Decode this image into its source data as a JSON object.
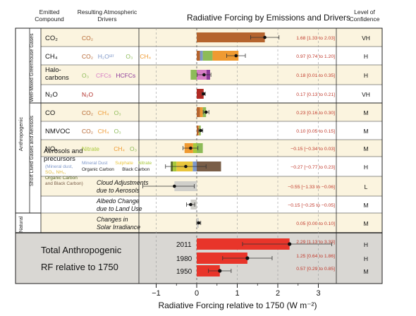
{
  "header": {
    "emitted": [
      "Emitted",
      "Compound"
    ],
    "drivers": [
      "Resulting Atmospheric",
      "Drivers"
    ],
    "title": "Radiative Forcing by Emissions and Drivers",
    "confidence": [
      "Level of",
      "Confidence"
    ]
  },
  "groups": {
    "anthropogenic": "Anthropogenic",
    "wmghg": "Well-Mixed Greenhouse Gases",
    "slgas": "Short Lived Gases and Aerosols",
    "natural": "Natural"
  },
  "colors": {
    "CO2": "#b5642e",
    "CH4": "#ef9a32",
    "O3": "#8dbb58",
    "H2O": "#7e97c8",
    "CFCs": "#d77ec5",
    "HCFCs": "#8e3b9b",
    "N2O": "#b02a24",
    "nitrate": "#a8c83a",
    "mineral": "#7e97c8",
    "sulphate": "#e9c53c",
    "organic": "#5a6a2c",
    "black": "#7a5e48",
    "gray": "#d0cfca",
    "total": "#e8352a",
    "rowshade": "#fbf4df",
    "totalbg": "#d9d7d3"
  },
  "rows": [
    {
      "compound": "CO₂",
      "value": "1.68 [1.33 to 2.03]",
      "conf": "VH",
      "drivers": [
        {
          "t": "CO₂",
          "c": "CO2"
        }
      ]
    },
    {
      "compound": "CH₄",
      "value": "0.97 [0.74 to 1.20]",
      "conf": "H",
      "drivers": [
        {
          "t": "CO₂",
          "c": "CO2"
        },
        {
          "t": "H₂Oˢᵗʳ",
          "c": "H2O"
        },
        {
          "t": "O₃",
          "c": "O3"
        },
        {
          "t": "CH₄",
          "c": "CH4"
        }
      ]
    },
    {
      "compound": "Halo-",
      "compound2": "carbons",
      "value": "0.18 [0.01 to 0.35]",
      "conf": "H",
      "drivers": [
        {
          "t": "O₃",
          "c": "O3"
        },
        {
          "t": "CFCs",
          "c": "CFCs"
        },
        {
          "t": "HCFCs",
          "c": "HCFCs"
        }
      ]
    },
    {
      "compound": "N₂O",
      "value": "0.17 [0.13 to 0.21]",
      "conf": "VH",
      "drivers": [
        {
          "t": "N₂O",
          "c": "N2O"
        }
      ]
    },
    {
      "compound": "CO",
      "value": "0.23 [0.16 to 0.30]",
      "conf": "M",
      "drivers": [
        {
          "t": "CO₂",
          "c": "CO2"
        },
        {
          "t": "CH₄",
          "c": "CH4"
        },
        {
          "t": "O₃",
          "c": "O3"
        }
      ]
    },
    {
      "compound": "NMVOC",
      "value": "0.10 [0.05 to 0.15]",
      "conf": "M",
      "drivers": [
        {
          "t": "CO₂",
          "c": "CO2"
        },
        {
          "t": "CH₄",
          "c": "CH4"
        },
        {
          "t": "O₃",
          "c": "O3"
        }
      ]
    },
    {
      "compound": "NOₓ",
      "value": "−0.15 [−0.34 to 0.03]",
      "conf": "M",
      "drivers": [
        {
          "t": "Nitrate",
          "c": "nitrate"
        },
        {
          "t": "CH₄",
          "c": "CH4"
        },
        {
          "t": "O₃",
          "c": "O3"
        }
      ]
    },
    {
      "compound": "Aerosols and",
      "compound2": "precursors",
      "value": "−0.27 [−0.77 to 0.23]",
      "conf": "H",
      "subs": [
        "(Mineral dust,",
        "SO₂, NH₃,",
        "Organic Carbon",
        "and Black Carbon)"
      ],
      "drivers1": [
        {
          "t": "Mineral Dust",
          "c": "mineral"
        },
        {
          "t": "Sulphate",
          "c": "sulphate"
        },
        {
          "t": "Nitrate",
          "c": "nitrate"
        }
      ],
      "drivers2": [
        {
          "t": "Organic Carbon",
          "c": "organic"
        },
        {
          "t": "Black Carbon",
          "c": "black"
        }
      ]
    },
    {
      "driver_text": [
        "Cloud Adjustments",
        "due to Aerosols"
      ],
      "value": "−0.55 [−1.33 to −0.06]",
      "conf": "L"
    },
    {
      "driver_text": [
        "Albedo Change",
        "due to Land Use"
      ],
      "value": "−0.15 [−0.25 to −0.05]",
      "conf": "M"
    },
    {
      "driver_text": [
        "Changes in",
        "Solar Irradiance"
      ],
      "value": "0.05 [0.00 to 0.10]",
      "conf": "M"
    }
  ],
  "total": {
    "label1": "Total Anthropogenic",
    "label2": "RF relative to 1750",
    "years": [
      {
        "year": "2011",
        "value": "2.29 [1.13 to 3.33]",
        "conf": "H"
      },
      {
        "year": "1980",
        "value": "1.25 [0.64 to 1.86]",
        "conf": "H"
      },
      {
        "year": "1950",
        "value": "0.57 [0.29 to 0.85]",
        "conf": "M"
      }
    ]
  },
  "chart_data": {
    "type": "bar",
    "title": "Radiative Forcing by Emissions and Drivers",
    "xlabel": "Radiative Forcing relative to 1750 (W m⁻²)",
    "xlim": [
      -1.5,
      3.5
    ],
    "xticks": [
      -1,
      0,
      1,
      2,
      3
    ],
    "tick_labels": [
      "−1",
      "0",
      "1",
      "2",
      "3"
    ],
    "gridlines": "dashed",
    "series": [
      {
        "name": "CO₂",
        "center": 1.68,
        "low": 1.33,
        "high": 2.03,
        "components": [
          {
            "driver": "CO₂",
            "value": 1.68
          }
        ]
      },
      {
        "name": "CH₄",
        "center": 0.97,
        "low": 0.74,
        "high": 1.2,
        "components": [
          {
            "driver": "CO₂",
            "value": 0.08
          },
          {
            "driver": "H₂Oˢᵗʳ",
            "value": 0.07
          },
          {
            "driver": "O₃",
            "value": 0.24
          },
          {
            "driver": "CH₄",
            "value": 0.64
          }
        ]
      },
      {
        "name": "Halocarbons",
        "center": 0.18,
        "low": 0.01,
        "high": 0.35,
        "components": [
          {
            "driver": "O₃",
            "value": -0.15
          },
          {
            "driver": "CFCs",
            "value": 0.24
          },
          {
            "driver": "HCFCs",
            "value": 0.09
          }
        ]
      },
      {
        "name": "N₂O",
        "center": 0.17,
        "low": 0.13,
        "high": 0.21,
        "components": [
          {
            "driver": "N₂O",
            "value": 0.17
          }
        ]
      },
      {
        "name": "CO",
        "center": 0.23,
        "low": 0.16,
        "high": 0.3,
        "components": [
          {
            "driver": "CO₂",
            "value": 0.08
          },
          {
            "driver": "CH₄",
            "value": 0.07
          },
          {
            "driver": "O₃",
            "value": 0.08
          }
        ]
      },
      {
        "name": "NMVOC",
        "center": 0.1,
        "low": 0.05,
        "high": 0.15,
        "components": [
          {
            "driver": "CO₂",
            "value": 0.04
          },
          {
            "driver": "CH₄",
            "value": 0.02
          },
          {
            "driver": "O₃",
            "value": 0.04
          }
        ]
      },
      {
        "name": "NOₓ",
        "center": -0.15,
        "low": -0.34,
        "high": 0.03,
        "components": [
          {
            "driver": "Nitrate",
            "value": -0.09
          },
          {
            "driver": "CH₄",
            "value": -0.21
          },
          {
            "driver": "O₃",
            "value": 0.15
          }
        ]
      },
      {
        "name": "Aerosols and precursors",
        "center": -0.27,
        "low": -0.77,
        "high": 0.23,
        "components": [
          {
            "driver": "Mineral Dust",
            "value": -0.1
          },
          {
            "driver": "Sulphate",
            "value": -0.4
          },
          {
            "driver": "Nitrate",
            "value": -0.09
          },
          {
            "driver": "Organic Carbon",
            "value": -0.05
          },
          {
            "driver": "Black Carbon",
            "value": 0.6
          }
        ]
      },
      {
        "name": "Cloud Adjustments due to Aerosols",
        "center": -0.55,
        "low": -1.33,
        "high": -0.06,
        "components": [
          {
            "driver": "Cloud",
            "value": -0.55
          }
        ]
      },
      {
        "name": "Albedo Change due to Land Use",
        "center": -0.15,
        "low": -0.25,
        "high": -0.05,
        "components": [
          {
            "driver": "Albedo",
            "value": -0.15
          }
        ]
      },
      {
        "name": "Changes in Solar Irradiance",
        "center": 0.05,
        "low": 0.0,
        "high": 0.1,
        "components": [
          {
            "driver": "Solar",
            "value": 0.05
          }
        ]
      },
      {
        "name": "2011",
        "center": 2.29,
        "low": 1.13,
        "high": 3.33,
        "components": [
          {
            "driver": "Total",
            "value": 2.29
          }
        ]
      },
      {
        "name": "1980",
        "center": 1.25,
        "low": 0.64,
        "high": 1.86,
        "components": [
          {
            "driver": "Total",
            "value": 1.25
          }
        ]
      },
      {
        "name": "1950",
        "center": 0.57,
        "low": 0.29,
        "high": 0.85,
        "components": [
          {
            "driver": "Total",
            "value": 0.57
          }
        ]
      }
    ]
  }
}
